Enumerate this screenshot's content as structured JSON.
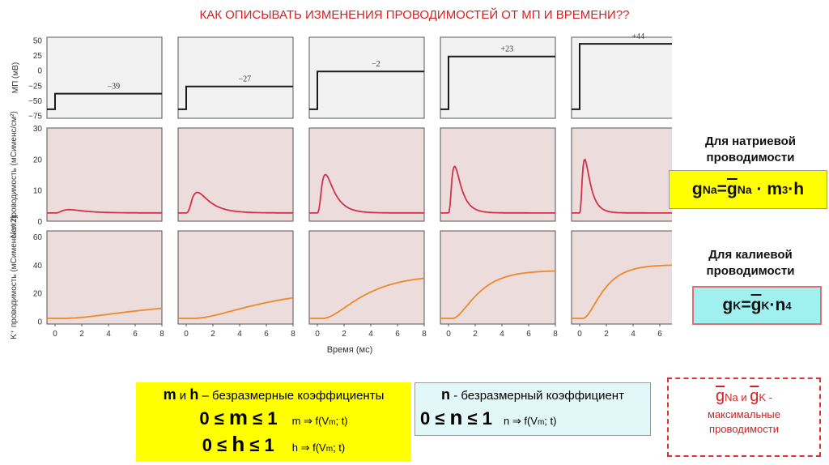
{
  "title": "КАК ОПИСЫВАТЬ ИЗМЕНЕНИЯ ПРОВОДИМОСТЕЙ ОТ МП И ВРЕМЕНИ??",
  "chart_data": {
    "type": "line",
    "x_ticks": [
      "0",
      "2",
      "4",
      "6",
      "8"
    ],
    "xlabel": "Время (мс)",
    "xlim": [
      0,
      8
    ],
    "mp_axis": {
      "ylabel": "МП (мВ)",
      "ylim": [
        -65,
        55
      ],
      "ticks": [
        "50",
        "25",
        "0",
        "−25",
        "−50",
        "−75"
      ]
    },
    "na_axis": {
      "ylabel": "Na⁺ проводимость (мСименс/см²)",
      "ylim": [
        0,
        30
      ],
      "ticks": [
        "30",
        "20",
        "10",
        "0"
      ]
    },
    "k_axis": {
      "ylabel": "K⁺ проводимость (мСименс/см2)",
      "ylim": [
        0,
        60
      ],
      "ticks": [
        "60",
        "40",
        "20",
        "0"
      ]
    },
    "colors": {
      "na": "#d0324e",
      "k": "#ea8a2a",
      "mp": "#1a1a1a",
      "bg": "#ecdcdc"
    },
    "panels": [
      {
        "step_label": "−39",
        "step_value": -39,
        "na_peak": 1.2,
        "na_tpeak": 1.4,
        "k_final": 12,
        "k_tau": 5,
        "k_delay": 0.6
      },
      {
        "step_label": "−27",
        "step_value": -27,
        "na_peak": 7.5,
        "na_tpeak": 1.1,
        "k_final": 21,
        "k_tau": 4.2,
        "k_delay": 0.5
      },
      {
        "step_label": "−2",
        "step_value": -2,
        "na_peak": 14,
        "na_tpeak": 0.8,
        "k_final": 31,
        "k_tau": 2.4,
        "k_delay": 0.4
      },
      {
        "step_label": "+23",
        "step_value": 23,
        "na_peak": 17,
        "na_tpeak": 0.6,
        "k_final": 34,
        "k_tau": 1.5,
        "k_delay": 0.3
      },
      {
        "step_label": "+44",
        "step_value": 44,
        "na_peak": 19.5,
        "na_tpeak": 0.5,
        "k_final": 38,
        "k_tau": 1.2,
        "k_delay": 0.25
      }
    ]
  },
  "na_label": "Для натриевой проводимости",
  "na_formula": {
    "g": "g",
    "sub": "Na",
    "eq": "= ",
    "gbar": "g",
    "gbar_sub": "Na",
    "rest": " · m",
    "sup": "3",
    "tail": "·h"
  },
  "k_label": "Для калиевой проводимости",
  "k_formula": {
    "g": "g",
    "sub": "K",
    "eq": "= ",
    "gbar": "g",
    "gbar_sub": "K",
    "rest": "·n",
    "sup": "4"
  },
  "mh_box": {
    "m": "m",
    "and": " и ",
    "h": "h",
    "desc": " – безразмерные коэффициенты",
    "ineq_m_left": "0 ≤ ",
    "ineq_m_right": " ≤ 1",
    "m_func": "m ⇒ f(V",
    "m_func_sub": "m",
    "m_func_end": "; t)",
    "ineq_h_left": "0 ≤ ",
    "ineq_h_right": " ≤ 1",
    "h_func": "h ⇒ f(V",
    "h_func_sub": "m",
    "h_func_end": "; t)"
  },
  "n_box": {
    "n": "n",
    "desc": " - безразмерный коэффициент",
    "ineq_left": "0 ≤ ",
    "ineq_right": " ≤ 1",
    "func": "n ⇒ f(V",
    "func_sub": "m",
    "func_end": "; t)"
  },
  "max_box": {
    "g1": "g",
    "sub1": "Na",
    "and": " и ",
    "g2": "g",
    "sub2": "K",
    "dash": " -",
    "desc": "максимальные проводимости"
  }
}
